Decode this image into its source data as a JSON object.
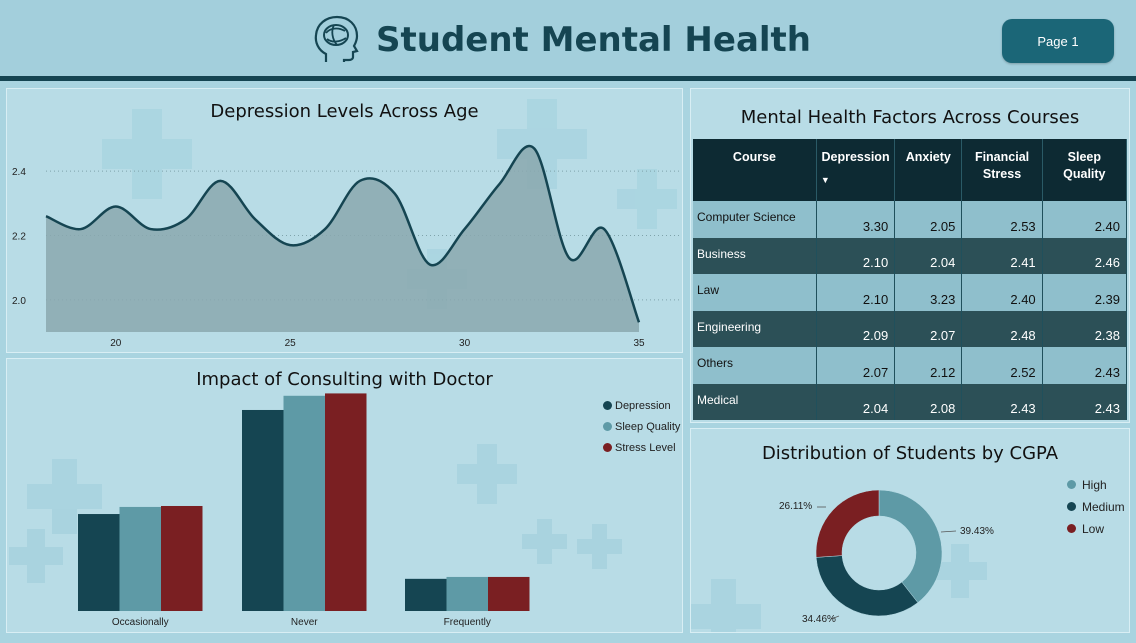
{
  "header": {
    "title": "Student Mental Health",
    "logo_icon": "head-brain-icon",
    "page_button": "Page 1"
  },
  "colors": {
    "dark_teal": "#154552",
    "teal": "#5e9aa6",
    "maroon": "#7a1f22",
    "area_fill": "#8aa8ae"
  },
  "chart_data": [
    {
      "type": "area",
      "title": "Depression Levels Across Age",
      "x": [
        18,
        19,
        20,
        21,
        22,
        23,
        24,
        25,
        26,
        27,
        28,
        29,
        30,
        31,
        32,
        33,
        34,
        35
      ],
      "y": [
        2.26,
        2.22,
        2.29,
        2.22,
        2.25,
        2.37,
        2.25,
        2.17,
        2.22,
        2.37,
        2.33,
        2.11,
        2.22,
        2.36,
        2.47,
        2.13,
        2.22,
        1.93
      ],
      "x_ticks": [
        "20",
        "25",
        "30",
        "35"
      ],
      "y_ticks": [
        "2.0",
        "2.2",
        "2.4"
      ],
      "xlim": [
        18,
        35
      ],
      "ylim": [
        1.9,
        2.5
      ],
      "grid": true
    },
    {
      "type": "bar",
      "title": "Impact of Consulting with Doctor",
      "categories": [
        "Occasionally",
        "Never",
        "Frequently"
      ],
      "series": [
        {
          "name": "Depression",
          "values": [
            2.05,
            4.25,
            0.68
          ]
        },
        {
          "name": "Sleep Quality",
          "values": [
            2.2,
            4.55,
            0.72
          ]
        },
        {
          "name": "Stress Level",
          "values": [
            2.22,
            4.6,
            0.72
          ]
        }
      ],
      "legend": "top-right"
    },
    {
      "type": "table",
      "title": "Mental Health Factors Across Courses",
      "columns": [
        "Course",
        "Depression",
        "Anxiety",
        "Financial Stress",
        "Sleep Quality"
      ],
      "rows": [
        [
          "Computer Science",
          "3.30",
          "2.05",
          "2.53",
          "2.40"
        ],
        [
          "Business",
          "2.10",
          "2.04",
          "2.41",
          "2.46"
        ],
        [
          "Law",
          "2.10",
          "3.23",
          "2.40",
          "2.39"
        ],
        [
          "Engineering",
          "2.09",
          "2.07",
          "2.48",
          "2.38"
        ],
        [
          "Others",
          "2.07",
          "2.12",
          "2.52",
          "2.43"
        ],
        [
          "Medical",
          "2.04",
          "2.08",
          "2.43",
          "2.43"
        ]
      ]
    },
    {
      "type": "pie",
      "title": "Distribution of Students by CGPA",
      "categories": [
        "High",
        "Medium",
        "Low"
      ],
      "values": [
        39.43,
        34.46,
        26.11
      ],
      "labels": [
        "39.43%",
        "34.46%",
        "26.11%"
      ],
      "legend": "right"
    }
  ]
}
